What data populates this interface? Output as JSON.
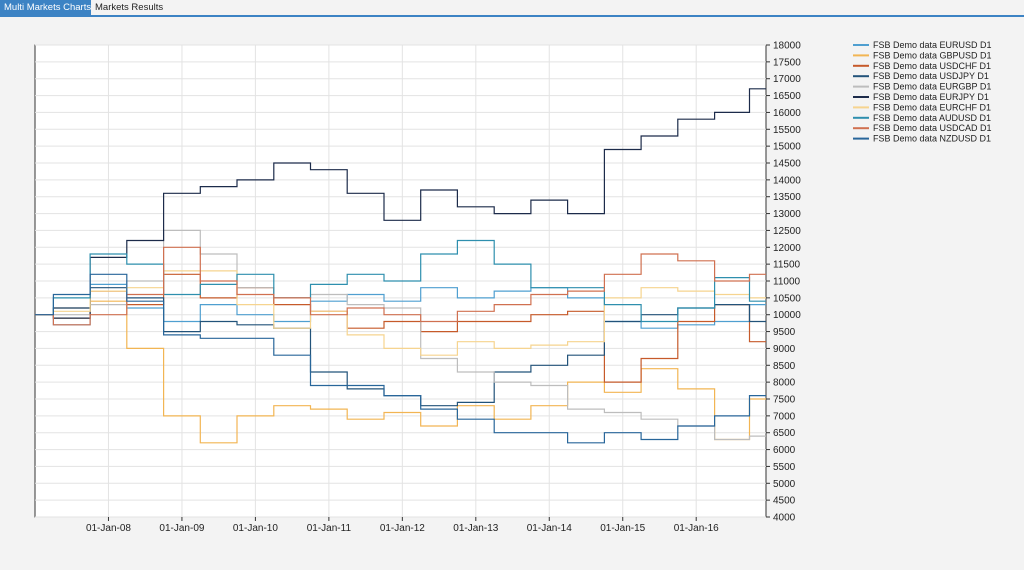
{
  "tabs": [
    {
      "label": "Multi Markets Charts",
      "active": true
    },
    {
      "label": "Markets Results",
      "active": false
    }
  ],
  "chart_data": {
    "type": "line",
    "title": "",
    "xlabel": "",
    "ylabel": "",
    "ylim": [
      4000,
      18000
    ],
    "xlim": [
      2007.0,
      2016.95
    ],
    "yticks": [
      4000,
      4500,
      5000,
      5500,
      6000,
      6500,
      7000,
      7500,
      8000,
      8500,
      9000,
      9500,
      10000,
      10500,
      11000,
      11500,
      12000,
      12500,
      13000,
      13500,
      14000,
      14500,
      15000,
      15500,
      16000,
      16500,
      17000,
      17500,
      18000
    ],
    "xticks": [
      {
        "label": "01-Jan-08",
        "x": 2008
      },
      {
        "label": "01-Jan-09",
        "x": 2009
      },
      {
        "label": "01-Jan-10",
        "x": 2010
      },
      {
        "label": "01-Jan-11",
        "x": 2011
      },
      {
        "label": "01-Jan-12",
        "x": 2012
      },
      {
        "label": "01-Jan-13",
        "x": 2013
      },
      {
        "label": "01-Jan-14",
        "x": 2014
      },
      {
        "label": "01-Jan-15",
        "x": 2015
      },
      {
        "label": "01-Jan-16",
        "x": 2016
      }
    ],
    "grid": true,
    "legend_position": "top-right",
    "x": [
      2007.0,
      2007.5,
      2008.0,
      2008.5,
      2009.0,
      2009.5,
      2010.0,
      2010.5,
      2011.0,
      2011.5,
      2012.0,
      2012.5,
      2013.0,
      2013.5,
      2014.0,
      2014.5,
      2015.0,
      2015.5,
      2016.0,
      2016.5,
      2016.95
    ],
    "series": [
      {
        "name": "FSB Demo data EURUSD D1",
        "color": "#4f9fd0",
        "values": [
          10000,
          9700,
          10900,
          10200,
          9800,
          10300,
          10000,
          9800,
          10400,
          10600,
          10400,
          10800,
          10500,
          10700,
          10800,
          10500,
          9800,
          9600,
          9700,
          9800,
          10300
        ]
      },
      {
        "name": "FSB Demo data GBPUSD D1",
        "color": "#f2b553",
        "values": [
          10000,
          9900,
          10400,
          9000,
          7000,
          6200,
          7000,
          7300,
          7200,
          6900,
          7100,
          6700,
          7300,
          6900,
          7300,
          8000,
          7700,
          8400,
          7800,
          6300,
          7500
        ]
      },
      {
        "name": "FSB Demo data USDCHF D1",
        "color": "#c65a2a",
        "values": [
          10000,
          10200,
          10700,
          10300,
          11200,
          10500,
          10800,
          10300,
          10100,
          9600,
          9800,
          9500,
          9800,
          9800,
          10000,
          10100,
          8000,
          8700,
          9800,
          10300,
          9200
        ]
      },
      {
        "name": "FSB Demo data USDJPY D1",
        "color": "#22537a",
        "values": [
          10000,
          10200,
          10800,
          10500,
          9500,
          9800,
          9700,
          9600,
          8300,
          7800,
          7600,
          7300,
          7400,
          8300,
          8500,
          8800,
          9800,
          10000,
          10200,
          10300,
          9800
        ]
      },
      {
        "name": "FSB Demo data EURGBP D1",
        "color": "#bdbdbd",
        "values": [
          10000,
          10000,
          10300,
          11000,
          12500,
          11800,
          10800,
          10500,
          10600,
          10300,
          10200,
          8700,
          8300,
          8000,
          7900,
          7200,
          7100,
          6900,
          6700,
          6300,
          6400
        ]
      },
      {
        "name": "FSB Demo data EURJPY D1",
        "color": "#1c2b4a",
        "values": [
          10000,
          9900,
          11700,
          12200,
          13600,
          13800,
          14000,
          14500,
          14300,
          13600,
          12800,
          13700,
          13200,
          13000,
          13400,
          13000,
          14900,
          15300,
          15800,
          16000,
          16700
        ]
      },
      {
        "name": "FSB Demo data EURCHF D1",
        "color": "#f6d48f",
        "values": [
          10000,
          10100,
          10700,
          10800,
          11300,
          11300,
          10300,
          9600,
          10100,
          9400,
          9000,
          8800,
          9200,
          9000,
          9100,
          9200,
          10500,
          10800,
          10700,
          10600,
          10500
        ]
      },
      {
        "name": "FSB Demo data AUDUSD D1",
        "color": "#2e8fae",
        "values": [
          10000,
          10500,
          11800,
          11500,
          10600,
          10900,
          11200,
          10500,
          10900,
          11200,
          11000,
          11800,
          12200,
          11500,
          10800,
          10800,
          10300,
          9800,
          10200,
          11100,
          10400
        ]
      },
      {
        "name": "FSB Demo data USDCAD D1",
        "color": "#d07050",
        "values": [
          10000,
          9700,
          10000,
          10600,
          12000,
          11000,
          10600,
          10500,
          10000,
          10200,
          10000,
          9800,
          10100,
          10300,
          10600,
          10700,
          11200,
          11800,
          11600,
          11000,
          11200
        ]
      },
      {
        "name": "FSB Demo data NZDUSD D1",
        "color": "#28669a",
        "values": [
          10000,
          10600,
          11200,
          10400,
          9400,
          9300,
          9300,
          8800,
          7900,
          7900,
          7600,
          7200,
          6900,
          6500,
          6500,
          6200,
          6500,
          6300,
          6700,
          7000,
          7600
        ]
      }
    ]
  }
}
